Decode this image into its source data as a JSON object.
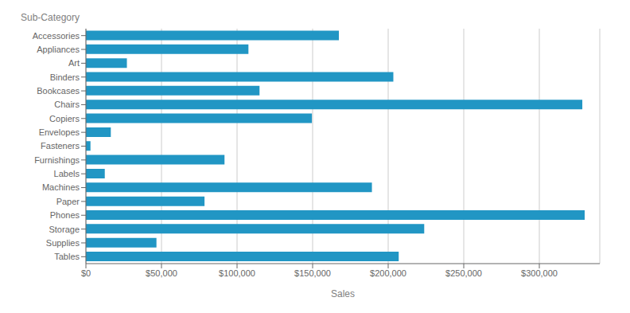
{
  "chart_data": {
    "type": "bar",
    "orientation": "horizontal",
    "xlabel": "Sales",
    "ylabel": "Sub-Category",
    "categories": [
      "Accessories",
      "Appliances",
      "Art",
      "Binders",
      "Bookcases",
      "Chairs",
      "Copiers",
      "Envelopes",
      "Fasteners",
      "Furnishings",
      "Labels",
      "Machines",
      "Paper",
      "Phones",
      "Storage",
      "Supplies",
      "Tables"
    ],
    "values": [
      167380,
      107532,
      27119,
      203413,
      114880,
      328449,
      149528,
      16476,
      3024,
      91705,
      12486,
      189239,
      78479,
      330007,
      223844,
      46674,
      206966
    ],
    "color": "#2196c4",
    "xlim": [
      0,
      340000
    ],
    "xticks": [
      {
        "value": 0,
        "label": "$0"
      },
      {
        "value": 50000,
        "label": "$50,000"
      },
      {
        "value": 100000,
        "label": "$100,000"
      },
      {
        "value": 150000,
        "label": "$150,000"
      },
      {
        "value": 200000,
        "label": "$200,000"
      },
      {
        "value": 250000,
        "label": "$250,000"
      },
      {
        "value": 300000,
        "label": "$300,000"
      }
    ],
    "grid": true
  }
}
